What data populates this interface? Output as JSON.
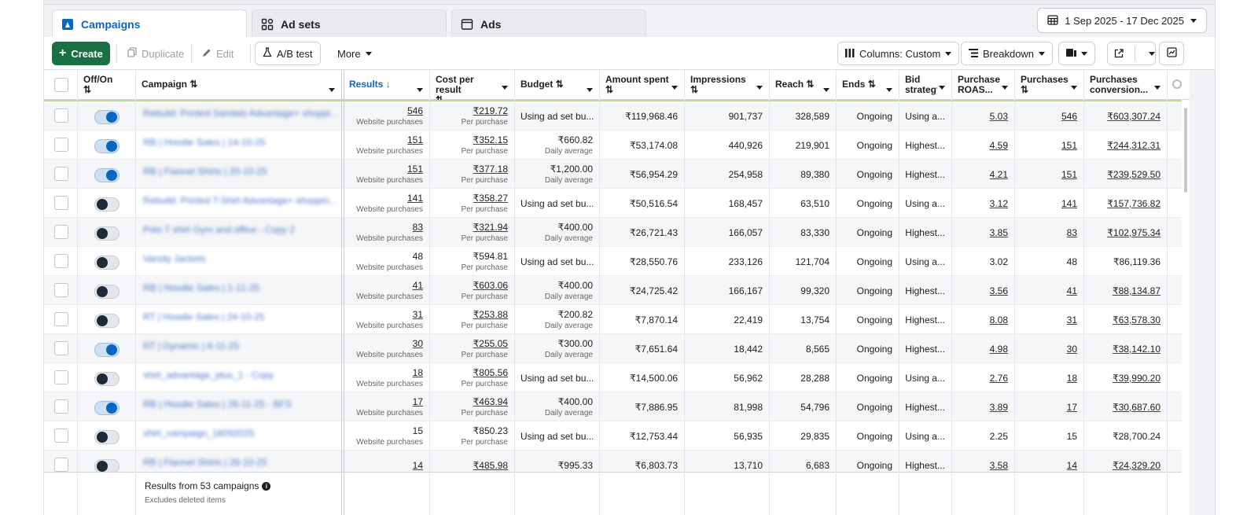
{
  "tabs": [
    {
      "label": "Campaigns",
      "icon": "flag-icon"
    },
    {
      "label": "Ad sets",
      "icon": "grid-icon"
    },
    {
      "label": "Ads",
      "icon": "ad-icon"
    }
  ],
  "date_range": "1 Sep 2025 - 17 Dec 2025",
  "toolbar": {
    "create": "Create",
    "duplicate": "Duplicate",
    "edit": "Edit",
    "ab_test": "A/B test",
    "more": "More",
    "columns": "Columns: Custom",
    "breakdown": "Breakdown"
  },
  "headers": {
    "off_on": "Off/On",
    "campaign": "Campaign",
    "results": "Results",
    "cost": "Cost per result",
    "budget": "Budget",
    "amount": "Amount spent",
    "impressions": "Impressions",
    "reach": "Reach",
    "ends": "Ends",
    "bid": "Bid strategy",
    "roas": "Purchase ROAS...",
    "purchases": "Purchases",
    "conversion": "Purchases conversion..."
  },
  "rows": [
    {
      "on": true,
      "name": "Rebuild: Printed Sandals Advantage+ shoppi...",
      "results": "546",
      "results_sub": "Website purchases",
      "cost": "₹219.72",
      "cost_sub": "Per purchase",
      "budget": "Using ad set bu...",
      "budget_sub": "",
      "amount": "₹119,968.46",
      "impressions": "901,737",
      "reach": "328,589",
      "ends": "Ongoing",
      "bid": "Using a...",
      "roas": "5.03",
      "purchases": "546",
      "conversion": "₹603,307.24",
      "linked": true
    },
    {
      "on": true,
      "name": "RB | Hoodie Sales | 14-10-25",
      "results": "151",
      "results_sub": "Website purchases",
      "cost": "₹352.15",
      "cost_sub": "Per purchase",
      "budget": "₹660.82",
      "budget_sub": "Daily average",
      "amount": "₹53,174.08",
      "impressions": "440,926",
      "reach": "219,901",
      "ends": "Ongoing",
      "bid": "Highest...",
      "roas": "4.59",
      "purchases": "151",
      "conversion": "₹244,312.31",
      "linked": true
    },
    {
      "on": true,
      "name": "RB | Flannel Shirts | 20-10-25",
      "results": "151",
      "results_sub": "Website purchases",
      "cost": "₹377.18",
      "cost_sub": "Per purchase",
      "budget": "₹1,200.00",
      "budget_sub": "Daily average",
      "amount": "₹56,954.29",
      "impressions": "254,958",
      "reach": "89,380",
      "ends": "Ongoing",
      "bid": "Highest...",
      "roas": "4.21",
      "purchases": "151",
      "conversion": "₹239,529.50",
      "linked": true
    },
    {
      "on": false,
      "name": "Rebuild: Printed T-Shirt Advantage+ shoppin...",
      "results": "141",
      "results_sub": "Website purchases",
      "cost": "₹358.27",
      "cost_sub": "Per purchase",
      "budget": "Using ad set bu...",
      "budget_sub": "",
      "amount": "₹50,516.54",
      "impressions": "168,457",
      "reach": "63,510",
      "ends": "Ongoing",
      "bid": "Using a...",
      "roas": "3.12",
      "purchases": "141",
      "conversion": "₹157,736.82",
      "linked": true
    },
    {
      "on": false,
      "name": "Polo T shirt Gym and office - Copy 2",
      "results": "83",
      "results_sub": "Website purchases",
      "cost": "₹321.94",
      "cost_sub": "Per purchase",
      "budget": "₹400.00",
      "budget_sub": "Daily average",
      "amount": "₹26,721.43",
      "impressions": "166,057",
      "reach": "83,330",
      "ends": "Ongoing",
      "bid": "Highest...",
      "roas": "3.85",
      "purchases": "83",
      "conversion": "₹102,975.34",
      "linked": true
    },
    {
      "on": false,
      "name": "Varsity Jackets",
      "results": "48",
      "results_sub": "Website purchases",
      "cost": "₹594.81",
      "cost_sub": "Per purchase",
      "budget": "Using ad set bu...",
      "budget_sub": "",
      "amount": "₹28,550.76",
      "impressions": "233,126",
      "reach": "121,704",
      "ends": "Ongoing",
      "bid": "Using a...",
      "roas": "3.02",
      "purchases": "48",
      "conversion": "₹86,119.36",
      "linked": false
    },
    {
      "on": false,
      "name": "RB | Hoodie Sales | 1-11-25",
      "results": "41",
      "results_sub": "Website purchases",
      "cost": "₹603.06",
      "cost_sub": "Per purchase",
      "budget": "₹400.00",
      "budget_sub": "Daily average",
      "amount": "₹24,725.42",
      "impressions": "166,167",
      "reach": "99,320",
      "ends": "Ongoing",
      "bid": "Highest...",
      "roas": "3.56",
      "purchases": "41",
      "conversion": "₹88,134.87",
      "linked": true
    },
    {
      "on": false,
      "name": "RT | Hoodie Sales | 24-10-25",
      "results": "31",
      "results_sub": "Website purchases",
      "cost": "₹253.88",
      "cost_sub": "Per purchase",
      "budget": "₹200.82",
      "budget_sub": "Daily average",
      "amount": "₹7,870.14",
      "impressions": "22,419",
      "reach": "13,754",
      "ends": "Ongoing",
      "bid": "Highest...",
      "roas": "8.08",
      "purchases": "31",
      "conversion": "₹63,578.30",
      "linked": true
    },
    {
      "on": true,
      "name": "RT | Dynamic | 6-11-25",
      "results": "30",
      "results_sub": "Website purchases",
      "cost": "₹255.05",
      "cost_sub": "Per purchase",
      "budget": "₹300.00",
      "budget_sub": "Daily average",
      "amount": "₹7,651.64",
      "impressions": "18,442",
      "reach": "8,565",
      "ends": "Ongoing",
      "bid": "Highest...",
      "roas": "4.98",
      "purchases": "30",
      "conversion": "₹38,142.10",
      "linked": true
    },
    {
      "on": false,
      "name": "shirt_advantage_plus_1 - Copy",
      "results": "18",
      "results_sub": "Website purchases",
      "cost": "₹805.56",
      "cost_sub": "Per purchase",
      "budget": "Using ad set bu...",
      "budget_sub": "",
      "amount": "₹14,500.06",
      "impressions": "56,962",
      "reach": "28,288",
      "ends": "Ongoing",
      "bid": "Using a...",
      "roas": "2.76",
      "purchases": "18",
      "conversion": "₹39,990.20",
      "linked": true
    },
    {
      "on": true,
      "name": "RB | Hoodie Sales | 28-11-25 - BFS",
      "results": "17",
      "results_sub": "Website purchases",
      "cost": "₹463.94",
      "cost_sub": "Per purchase",
      "budget": "₹400.00",
      "budget_sub": "Daily average",
      "amount": "₹7,886.95",
      "impressions": "81,998",
      "reach": "54,796",
      "ends": "Ongoing",
      "bid": "Highest...",
      "roas": "3.89",
      "purchases": "17",
      "conversion": "₹30,687.60",
      "linked": true
    },
    {
      "on": false,
      "name": "shirt_campaign_18092025",
      "results": "15",
      "results_sub": "Website purchases",
      "cost": "₹850.23",
      "cost_sub": "Per purchase",
      "budget": "Using ad set bu...",
      "budget_sub": "",
      "amount": "₹12,753.44",
      "impressions": "56,935",
      "reach": "29,835",
      "ends": "Ongoing",
      "bid": "Using a...",
      "roas": "2.25",
      "purchases": "15",
      "conversion": "₹28,700.24",
      "linked": false
    },
    {
      "on": false,
      "name": "RB | Flannel Shirts | 26-10-25",
      "results": "14",
      "results_sub": "",
      "cost": "₹485.98",
      "cost_sub": "",
      "budget": "₹995.33",
      "budget_sub": "",
      "amount": "₹6,803.73",
      "impressions": "13,710",
      "reach": "6,683",
      "ends": "Ongoing",
      "bid": "Highest...",
      "roas": "3.58",
      "purchases": "14",
      "conversion": "₹24,329.20",
      "linked": true
    }
  ],
  "footer": {
    "summary": "Results from 53 campaigns",
    "note": "Excludes deleted items"
  }
}
